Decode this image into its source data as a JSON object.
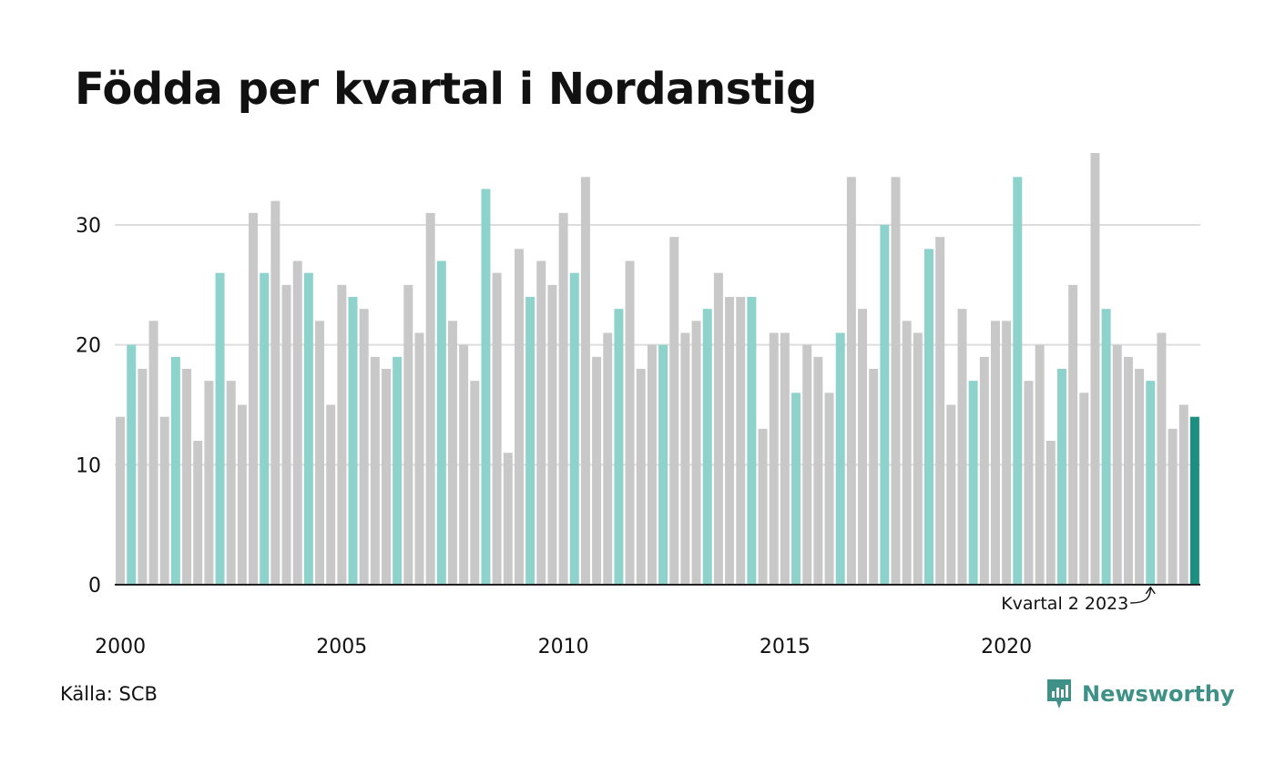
{
  "colors": {
    "regular_bar": "#c8c8c8",
    "highlight_bar": "#8dd3cc",
    "latest_bar": "#1a8f82",
    "grid": "#dddddd",
    "axis": "#222222",
    "logo": "#3f9187"
  },
  "source": "Källa: SCB",
  "logo": {
    "text": "Newsworthy",
    "icon": "newsworthy-bar-chart-icon"
  },
  "chart_data": {
    "type": "bar",
    "title": "Födda per kvartal i Nordanstig",
    "xlabel": "",
    "ylabel": "",
    "ylim": [
      0,
      36
    ],
    "yticks": [
      0,
      10,
      20,
      30
    ],
    "xtick_labels": [
      "2000",
      "2005",
      "2010",
      "2015",
      "2020"
    ],
    "grid": true,
    "highlight": "quarter 2 of each year",
    "annotation": "Kvartal 2 2023",
    "categories": [
      "2000 Q1",
      "2000 Q2",
      "2000 Q3",
      "2000 Q4",
      "2001 Q1",
      "2001 Q2",
      "2001 Q3",
      "2001 Q4",
      "2002 Q1",
      "2002 Q2",
      "2002 Q3",
      "2002 Q4",
      "2003 Q1",
      "2003 Q2",
      "2003 Q3",
      "2003 Q4",
      "2004 Q1",
      "2004 Q2",
      "2004 Q3",
      "2004 Q4",
      "2005 Q1",
      "2005 Q2",
      "2005 Q3",
      "2005 Q4",
      "2006 Q1",
      "2006 Q2",
      "2006 Q3",
      "2006 Q4",
      "2007 Q1",
      "2007 Q2",
      "2007 Q3",
      "2007 Q4",
      "2008 Q1",
      "2008 Q2",
      "2008 Q3",
      "2008 Q4",
      "2009 Q1",
      "2009 Q2",
      "2009 Q3",
      "2009 Q4",
      "2010 Q1",
      "2010 Q2",
      "2010 Q3",
      "2010 Q4",
      "2011 Q1",
      "2011 Q2",
      "2011 Q3",
      "2011 Q4",
      "2012 Q1",
      "2012 Q2",
      "2012 Q3",
      "2012 Q4",
      "2013 Q1",
      "2013 Q2",
      "2013 Q3",
      "2013 Q4",
      "2014 Q1",
      "2014 Q2",
      "2014 Q3",
      "2014 Q4",
      "2015 Q1",
      "2015 Q2",
      "2015 Q3",
      "2015 Q4",
      "2016 Q1",
      "2016 Q2",
      "2016 Q3",
      "2016 Q4",
      "2017 Q1",
      "2017 Q2",
      "2017 Q3",
      "2017 Q4",
      "2018 Q1",
      "2018 Q2",
      "2018 Q3",
      "2018 Q4",
      "2019 Q1",
      "2019 Q2",
      "2019 Q3",
      "2019 Q4",
      "2020 Q1",
      "2020 Q2",
      "2020 Q3",
      "2020 Q4",
      "2021 Q1",
      "2021 Q2",
      "2021 Q3",
      "2021 Q4",
      "2022 Q1",
      "2022 Q2",
      "2022 Q3",
      "2022 Q4",
      "2023 Q1",
      "2023 Q2",
      "2023 Q3",
      "2023 Q4",
      "2024 Q1",
      "2024 Q2"
    ],
    "values": [
      14,
      20,
      18,
      22,
      14,
      19,
      18,
      12,
      17,
      26,
      17,
      15,
      31,
      26,
      32,
      25,
      27,
      26,
      22,
      15,
      25,
      24,
      23,
      19,
      18,
      19,
      25,
      21,
      31,
      27,
      22,
      20,
      17,
      33,
      26,
      11,
      28,
      24,
      27,
      25,
      31,
      26,
      34,
      19,
      21,
      23,
      27,
      18,
      20,
      20,
      29,
      21,
      22,
      23,
      26,
      24,
      24,
      24,
      13,
      21,
      21,
      16,
      20,
      19,
      16,
      21,
      34,
      23,
      18,
      30,
      34,
      22,
      21,
      28,
      29,
      15,
      23,
      17,
      19,
      22,
      22,
      34,
      17,
      20,
      12,
      18,
      25,
      16,
      36,
      23,
      20,
      19,
      18,
      17,
      21,
      13,
      15,
      14
    ]
  }
}
